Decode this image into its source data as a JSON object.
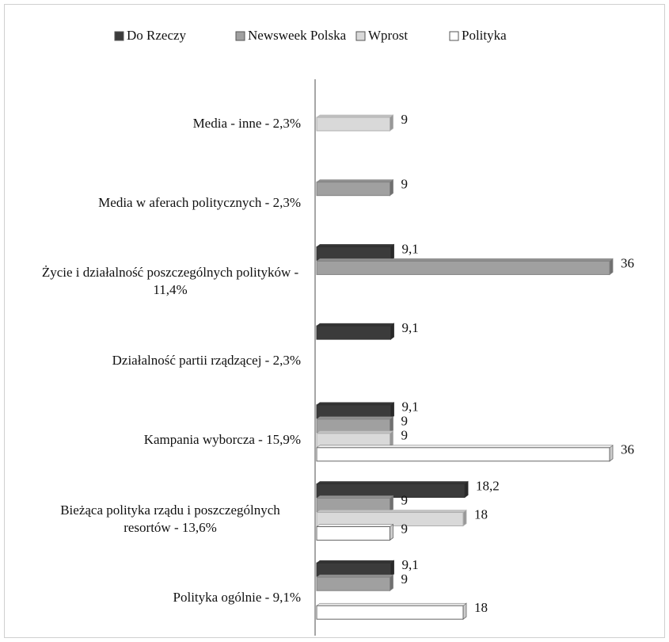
{
  "chart_data": {
    "type": "bar",
    "orientation": "horizontal",
    "categories": [
      "Media - inne - 2,3%",
      "Media w aferach politycznych - 2,3%",
      "Życie i działalność poszczególnych polityków - 11,4%",
      "Działalność partii rządzącej - 2,3%",
      "Kampania wyborcza - 15,9%",
      "Bieżąca polityka rządu i poszczególnych resortów - 13,6%",
      "Polityka ogólnie - 9,1%"
    ],
    "series": [
      {
        "name": "Do Rzeczy",
        "color": "#3b3b3b",
        "values": [
          null,
          null,
          9.1,
          9.1,
          9.1,
          18.2,
          9.1
        ],
        "value_labels": [
          null,
          null,
          "9,1",
          "9,1",
          "9,1",
          "18,2",
          "9,1"
        ]
      },
      {
        "name": "Newsweek Polska",
        "color": "#a0a0a0",
        "values": [
          null,
          9,
          36,
          null,
          9,
          9,
          9
        ]
      },
      {
        "name": "Wprost",
        "color": "#d9d9d9",
        "values": [
          9,
          null,
          null,
          null,
          9,
          18,
          null
        ]
      },
      {
        "name": "Polityka",
        "color": "#ffffff",
        "values": [
          null,
          null,
          null,
          null,
          36,
          9,
          18
        ]
      }
    ],
    "legend": "top"
  }
}
